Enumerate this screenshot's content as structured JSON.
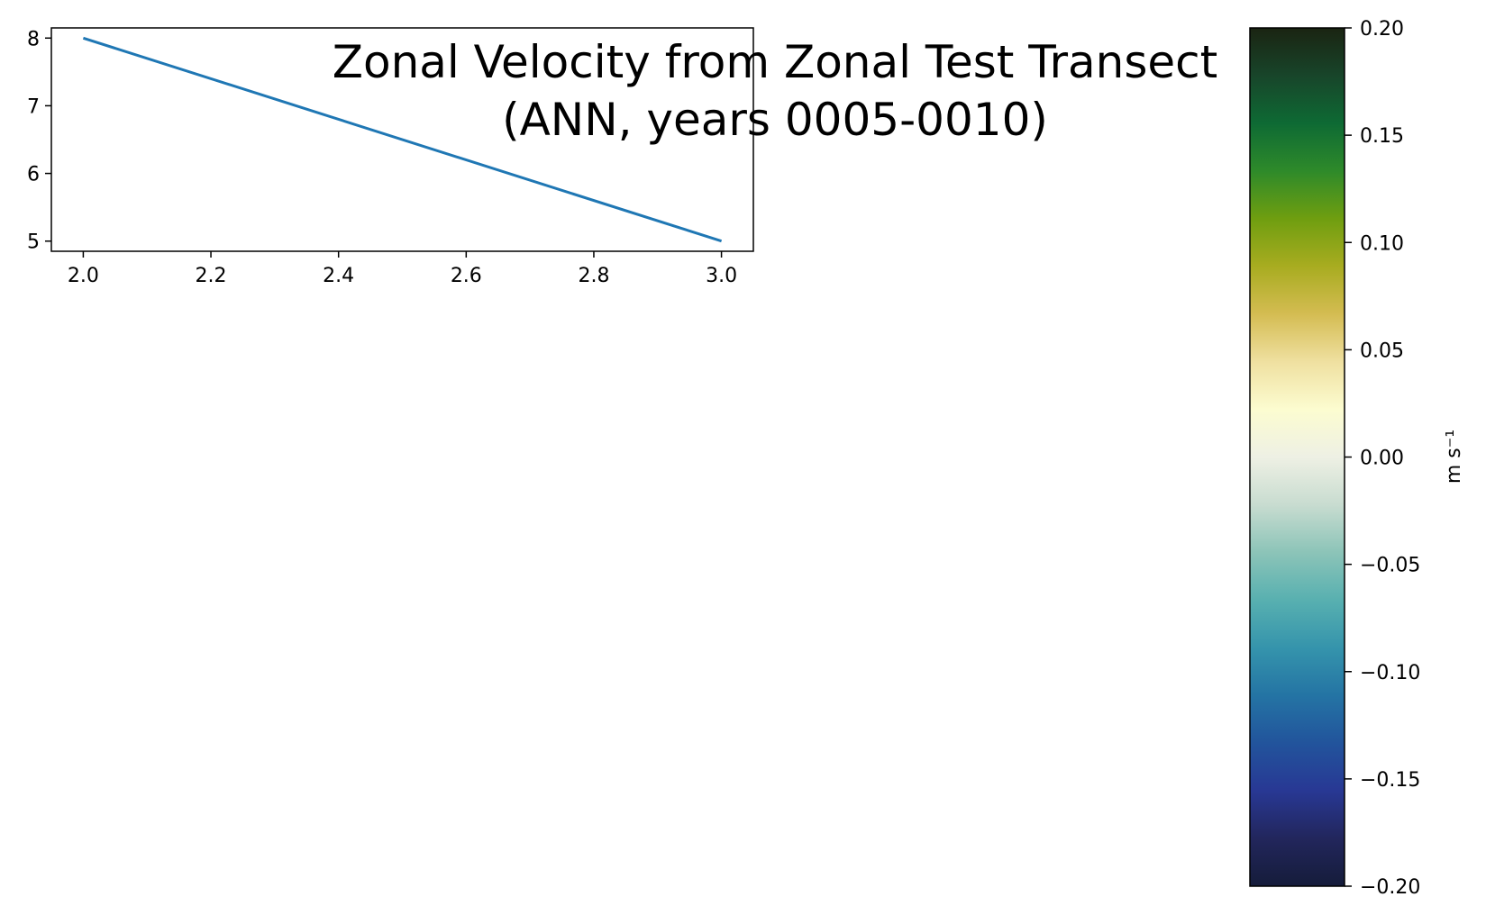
{
  "figure": {
    "title_line1": "Zonal Velocity from Zonal Test Transect",
    "title_line2": "(ANN, years 0005-0010)"
  },
  "chart_data": [
    {
      "type": "line",
      "title": "",
      "xlabel": "",
      "ylabel": "",
      "xlim": [
        1.95,
        3.05
      ],
      "ylim": [
        4.85,
        8.15
      ],
      "x_ticks": [
        "2.0",
        "2.2",
        "2.4",
        "2.6",
        "2.8",
        "3.0"
      ],
      "x_tick_values": [
        2.0,
        2.2,
        2.4,
        2.6,
        2.8,
        3.0
      ],
      "y_ticks": [
        "5",
        "6",
        "7",
        "8"
      ],
      "y_tick_values": [
        5,
        6,
        7,
        8
      ],
      "grid": false,
      "series": [
        {
          "x": [
            2.0,
            3.0
          ],
          "y": [
            8,
            5
          ],
          "color": "#1f77b4"
        }
      ]
    },
    {
      "type": "colorbar",
      "label": "m s⁻¹",
      "range": [
        -0.2,
        0.2
      ],
      "ticks": [
        "0.20",
        "0.15",
        "0.10",
        "0.05",
        "0.00",
        "−0.05",
        "−0.10",
        "−0.15",
        "−0.20"
      ],
      "tick_values": [
        0.2,
        0.15,
        0.1,
        0.05,
        0.0,
        -0.05,
        -0.1,
        -0.15,
        -0.2
      ],
      "colors_top_to_bottom": [
        "#1a2412",
        "#18452a",
        "#0e6a34",
        "#2e8a2a",
        "#6f9e10",
        "#a8ac20",
        "#d4bc52",
        "#efe0a0",
        "#fcfcd0",
        "#eef0e4",
        "#c8dcd0",
        "#8cc4b8",
        "#58b0b0",
        "#3594ac",
        "#2474a4",
        "#22549c",
        "#283894",
        "#22265c",
        "#151c3a"
      ]
    }
  ]
}
